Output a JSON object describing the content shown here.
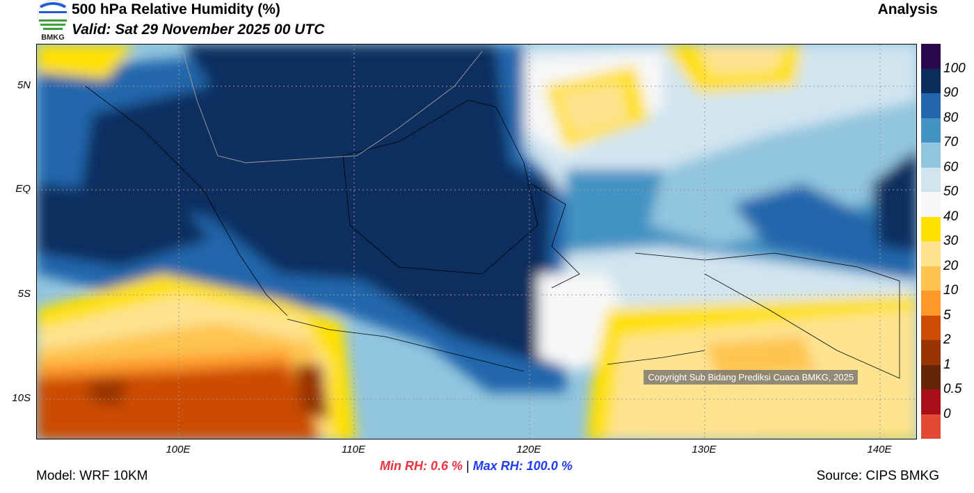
{
  "header": {
    "title": "500 hPa Relative Humidity (%)",
    "valid": "Valid: Sat 29 November 2025 00 UTC",
    "mode": "Analysis",
    "logo_text": "BMKG"
  },
  "axes": {
    "lat_labels": [
      "5N",
      "EQ",
      "5S",
      "10S"
    ],
    "lon_labels": [
      "100E",
      "110E",
      "120E",
      "130E",
      "140E"
    ]
  },
  "legend": {
    "labels": [
      "100",
      "90",
      "80",
      "70",
      "60",
      "50",
      "40",
      "30",
      "20",
      "10",
      "5",
      "2",
      "1",
      "0.5",
      "0"
    ],
    "colors": [
      "#2a0a4c",
      "#0b2e5f",
      "#2166ac",
      "#4393c3",
      "#92c5de",
      "#d1e5f0",
      "#f7f7f7",
      "#ffe000",
      "#fee391",
      "#fec44f",
      "#fe9929",
      "#cc4c02",
      "#993404",
      "#662506",
      "#a50f15",
      "#e34a33"
    ]
  },
  "footer": {
    "model": "Model: WRF 10KM",
    "source": "Source: CIPS BMKG",
    "min_label": "Min RH:",
    "min_value": "0.6 %",
    "separator": "|",
    "max_label": "Max RH:",
    "max_value": "100.0 %"
  },
  "map": {
    "copyright": "Copyright Sub Bidang Prediksi Cuaca BMKG, 2025"
  }
}
